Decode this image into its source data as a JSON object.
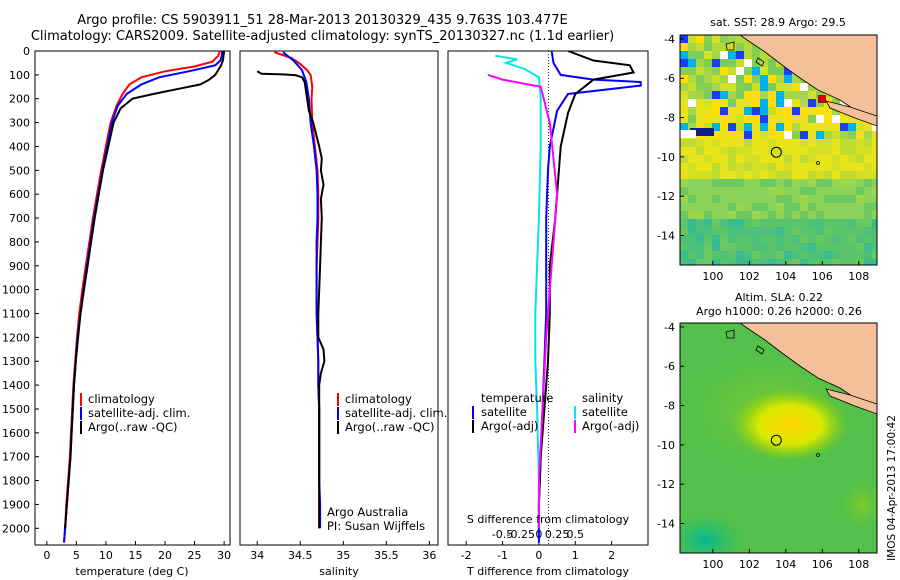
{
  "header": {
    "line1": "Argo profile: CS 5903911_51 28-Mar-2013 20130329_435 9.763S 103.477E",
    "line2": "Climatology: CARS2009. Satellite-adjusted climatology: synTS_20130327.nc (1.1d earlier)"
  },
  "colors": {
    "climatology": "#ff0000",
    "satellite": "#0000ff",
    "argo": "#000000",
    "s_satellite": "#00e5ee",
    "s_argo": "#ff00ff"
  },
  "chart_data": [
    {
      "type": "line",
      "xlabel": "temperature (deg C)",
      "xlim": [
        -2,
        31
      ],
      "ylim": [
        2070,
        0
      ],
      "xticks": [
        0,
        5,
        10,
        15,
        20,
        25,
        30
      ],
      "yticks": [
        0,
        100,
        200,
        300,
        400,
        500,
        600,
        700,
        800,
        900,
        1000,
        1100,
        1200,
        1300,
        1400,
        1500,
        1600,
        1700,
        1800,
        1900,
        2000
      ],
      "legend": [
        "climatology",
        "satellite-adj. clim.",
        "Argo(..raw -QC)"
      ],
      "series": [
        {
          "name": "climatology",
          "color": "#ff0000",
          "points": [
            [
              29.3,
              0
            ],
            [
              29,
              20
            ],
            [
              28,
              45
            ],
            [
              25,
              65
            ],
            [
              20,
              85
            ],
            [
              16,
              110
            ],
            [
              14,
              140
            ],
            [
              12.8,
              180
            ],
            [
              11.8,
              230
            ],
            [
              10.8,
              300
            ],
            [
              10,
              400
            ],
            [
              9.2,
              500
            ],
            [
              8.5,
              600
            ],
            [
              7.8,
              700
            ],
            [
              7.2,
              800
            ],
            [
              6.6,
              900
            ],
            [
              6,
              1000
            ],
            [
              5.5,
              1100
            ],
            [
              5.1,
              1200
            ],
            [
              4.8,
              1300
            ],
            [
              4.5,
              1400
            ],
            [
              4.3,
              1500
            ],
            [
              4.1,
              1600
            ],
            [
              3.9,
              1700
            ],
            [
              3.6,
              1800
            ],
            [
              3.3,
              1900
            ],
            [
              3.1,
              2000
            ],
            [
              2.9,
              2060
            ]
          ]
        },
        {
          "name": "satellite-adj. clim.",
          "color": "#0000ff",
          "points": [
            [
              29.7,
              0
            ],
            [
              29.6,
              20
            ],
            [
              29.4,
              40
            ],
            [
              28.5,
              60
            ],
            [
              24,
              85
            ],
            [
              19,
              110
            ],
            [
              16,
              140
            ],
            [
              13.5,
              180
            ],
            [
              12,
              230
            ],
            [
              11,
              300
            ],
            [
              10.2,
              400
            ],
            [
              9.4,
              500
            ],
            [
              8.7,
              600
            ],
            [
              8,
              700
            ],
            [
              7.4,
              800
            ],
            [
              6.8,
              900
            ],
            [
              6.2,
              1000
            ],
            [
              5.7,
              1100
            ],
            [
              5.2,
              1200
            ],
            [
              4.9,
              1300
            ],
            [
              4.6,
              1400
            ],
            [
              4.4,
              1500
            ],
            [
              4.2,
              1600
            ],
            [
              4,
              1700
            ],
            [
              3.7,
              1800
            ],
            [
              3.4,
              1900
            ],
            [
              3.1,
              2000
            ],
            [
              2.9,
              2060
            ]
          ]
        },
        {
          "name": "Argo(..raw -QC)",
          "color": "#000000",
          "points": [
            [
              30,
              0
            ],
            [
              29.9,
              20
            ],
            [
              29.8,
              40
            ],
            [
              29.5,
              60
            ],
            [
              29,
              80
            ],
            [
              28.5,
              100
            ],
            [
              27.5,
              120
            ],
            [
              26,
              140
            ],
            [
              22,
              160
            ],
            [
              18,
              180
            ],
            [
              14.5,
              200
            ],
            [
              12.5,
              240
            ],
            [
              11.3,
              300
            ],
            [
              10.4,
              400
            ],
            [
              9.5,
              500
            ],
            [
              8.8,
              600
            ],
            [
              8.1,
              700
            ],
            [
              7.5,
              800
            ],
            [
              6.9,
              900
            ],
            [
              6.3,
              1000
            ],
            [
              5.7,
              1100
            ],
            [
              5.3,
              1200
            ],
            [
              4.9,
              1300
            ],
            [
              4.6,
              1400
            ],
            [
              4.4,
              1500
            ],
            [
              4.2,
              1600
            ],
            [
              4,
              1700
            ],
            [
              3.7,
              1800
            ],
            [
              3.4,
              1900
            ],
            [
              3.1,
              2000
            ]
          ]
        }
      ]
    },
    {
      "type": "line",
      "xlabel": "salinity",
      "xlim": [
        33.8,
        36.1
      ],
      "ylim": [
        2070,
        0
      ],
      "xticks": [
        34,
        34.5,
        35,
        35.5,
        36
      ],
      "legend": [
        "climatology",
        "satellite-adj. clim.",
        "Argo(..raw -QC)"
      ],
      "annotations": [
        "Argo Australia",
        "PI: Susan Wijffels"
      ],
      "series": [
        {
          "name": "climatology",
          "color": "#ff0000",
          "points": [
            [
              34.2,
              5
            ],
            [
              34.4,
              30
            ],
            [
              34.5,
              55
            ],
            [
              34.58,
              80
            ],
            [
              34.62,
              100
            ],
            [
              34.64,
              150
            ],
            [
              34.63,
              200
            ],
            [
              34.64,
              300
            ],
            [
              34.67,
              400
            ],
            [
              34.7,
              500
            ],
            [
              34.71,
              600
            ],
            [
              34.71,
              700
            ],
            [
              34.7,
              800
            ],
            [
              34.69,
              900
            ],
            [
              34.69,
              1000
            ],
            [
              34.69,
              1100
            ],
            [
              34.7,
              1200
            ],
            [
              34.71,
              1300
            ],
            [
              34.71,
              1400
            ],
            [
              34.72,
              1500
            ],
            [
              34.72,
              1600
            ],
            [
              34.72,
              1700
            ],
            [
              34.72,
              1800
            ],
            [
              34.72,
              1900
            ],
            [
              34.72,
              2000
            ]
          ]
        },
        {
          "name": "satellite-adj. clim.",
          "color": "#0000ff",
          "points": [
            [
              34.3,
              5
            ],
            [
              34.42,
              40
            ],
            [
              34.52,
              80
            ],
            [
              34.57,
              130
            ],
            [
              34.6,
              200
            ],
            [
              34.62,
              300
            ],
            [
              34.66,
              400
            ],
            [
              34.69,
              500
            ],
            [
              34.7,
              600
            ],
            [
              34.7,
              700
            ],
            [
              34.69,
              800
            ],
            [
              34.69,
              900
            ],
            [
              34.69,
              1000
            ],
            [
              34.69,
              1100
            ],
            [
              34.7,
              1200
            ],
            [
              34.71,
              1300
            ],
            [
              34.71,
              1400
            ],
            [
              34.72,
              1500
            ],
            [
              34.72,
              1600
            ],
            [
              34.72,
              1700
            ],
            [
              34.72,
              1800
            ],
            [
              34.73,
              1900
            ],
            [
              34.73,
              2000
            ]
          ]
        },
        {
          "name": "Argo(..raw -QC)",
          "color": "#000000",
          "points": [
            [
              34.0,
              85
            ],
            [
              34.05,
              95
            ],
            [
              34.3,
              98
            ],
            [
              34.45,
              102
            ],
            [
              34.52,
              110
            ],
            [
              34.55,
              130
            ],
            [
              34.56,
              150
            ],
            [
              34.58,
              200
            ],
            [
              34.6,
              250
            ],
            [
              34.65,
              300
            ],
            [
              34.72,
              400
            ],
            [
              34.75,
              450
            ],
            [
              34.74,
              500
            ],
            [
              34.77,
              560
            ],
            [
              34.74,
              620
            ],
            [
              34.75,
              700
            ],
            [
              34.74,
              800
            ],
            [
              34.73,
              900
            ],
            [
              34.72,
              1000
            ],
            [
              34.71,
              1100
            ],
            [
              34.71,
              1200
            ],
            [
              34.77,
              1250
            ],
            [
              34.78,
              1300
            ],
            [
              34.74,
              1350
            ],
            [
              34.72,
              1400
            ],
            [
              34.72,
              1500
            ],
            [
              34.72,
              1600
            ],
            [
              34.72,
              1700
            ],
            [
              34.72,
              1800
            ],
            [
              34.72,
              1900
            ],
            [
              34.72,
              2000
            ]
          ]
        }
      ]
    },
    {
      "type": "line",
      "xlabel": "T difference from climatology",
      "xlabel_top": "S difference from climatology",
      "xlim": [
        -2.5,
        3
      ],
      "ylim": [
        2070,
        0
      ],
      "xticks": [
        -2,
        -1,
        0,
        1,
        2
      ],
      "xticks_s": [
        -0.5,
        -0.25,
        0,
        0.25,
        0.5
      ],
      "legend_headers": [
        "temperature",
        "salinity"
      ],
      "legend": [
        "satellite",
        "Argo(-adj)",
        "satellite",
        "Argo(-adj)"
      ],
      "series": [
        {
          "name": "satellite",
          "var": "temperature",
          "color": "#0000ff",
          "points": [
            [
              0.35,
              0
            ],
            [
              0.4,
              50
            ],
            [
              0.6,
              100
            ],
            [
              1.5,
              120
            ],
            [
              2.8,
              130
            ],
            [
              2.8,
              145
            ],
            [
              0.8,
              180
            ],
            [
              0.5,
              250
            ],
            [
              0.3,
              400
            ],
            [
              0.25,
              500
            ],
            [
              0.2,
              700
            ],
            [
              0.2,
              900
            ],
            [
              0.2,
              1100
            ],
            [
              0.15,
              1300
            ],
            [
              0.1,
              1500
            ],
            [
              0.05,
              1700
            ],
            [
              0,
              1900
            ],
            [
              0,
              2060
            ]
          ]
        },
        {
          "name": "Argo(-adj)",
          "var": "temperature",
          "color": "#000000",
          "points": [
            [
              0.8,
              0
            ],
            [
              1.5,
              40
            ],
            [
              2.5,
              60
            ],
            [
              2.6,
              90
            ],
            [
              1.5,
              120
            ],
            [
              1,
              180
            ],
            [
              0.8,
              260
            ],
            [
              0.6,
              400
            ],
            [
              0.55,
              500
            ],
            [
              0.45,
              700
            ],
            [
              0.3,
              900
            ],
            [
              0.3,
              1100
            ],
            [
              0.25,
              1300
            ],
            [
              0.15,
              1500
            ],
            [
              0.05,
              1700
            ],
            [
              0,
              1900
            ],
            [
              0,
              2000
            ]
          ]
        },
        {
          "name": "satellite",
          "var": "salinity",
          "color": "#00e5ee",
          "points": [
            [
              -1.2,
              20
            ],
            [
              -0.6,
              35
            ],
            [
              -0.9,
              50
            ],
            [
              -0.4,
              75
            ],
            [
              0,
              110
            ],
            [
              0.05,
              200
            ],
            [
              0.05,
              400
            ],
            [
              0,
              700
            ],
            [
              -0.05,
              900
            ],
            [
              -0.1,
              1100
            ],
            [
              -0.1,
              1300
            ],
            [
              -0.05,
              1500
            ],
            [
              0,
              1800
            ],
            [
              0,
              2000
            ]
          ]
        },
        {
          "name": "Argo(-adj)",
          "var": "salinity",
          "color": "#ff00ff",
          "points": [
            [
              -1.4,
              100
            ],
            [
              -1,
              120
            ],
            [
              0.05,
              150
            ],
            [
              0.3,
              300
            ],
            [
              0.5,
              600
            ],
            [
              0.4,
              800
            ],
            [
              0.3,
              1000
            ],
            [
              0.2,
              1200
            ],
            [
              0.1,
              1500
            ],
            [
              0,
              1800
            ],
            [
              0,
              2000
            ]
          ]
        }
      ]
    },
    {
      "type": "heatmap",
      "title": "sat. SST: 28.9 Argo: 29.5",
      "xlim": [
        98.2,
        109
      ],
      "ylim": [
        -15.5,
        -3.8
      ],
      "xticks": [
        100,
        102,
        104,
        106,
        108
      ],
      "yticks": [
        -4,
        -6,
        -8,
        -10,
        -12,
        -14
      ],
      "marker": [
        103.477,
        -9.763
      ]
    },
    {
      "type": "heatmap",
      "title": "Altim. SLA: 0.22",
      "subtitle": "Argo h1000: 0.26 h2000: 0.26",
      "xlim": [
        98.2,
        109
      ],
      "ylim": [
        -15.5,
        -3.8
      ],
      "xticks": [
        100,
        102,
        104,
        106,
        108
      ],
      "yticks": [
        -4,
        -6,
        -8,
        -10,
        -12,
        -14
      ],
      "marker": [
        103.477,
        -9.763
      ]
    }
  ],
  "footer": {
    "stamp": "IMOS 04-Apr-2013 17:00:42"
  }
}
